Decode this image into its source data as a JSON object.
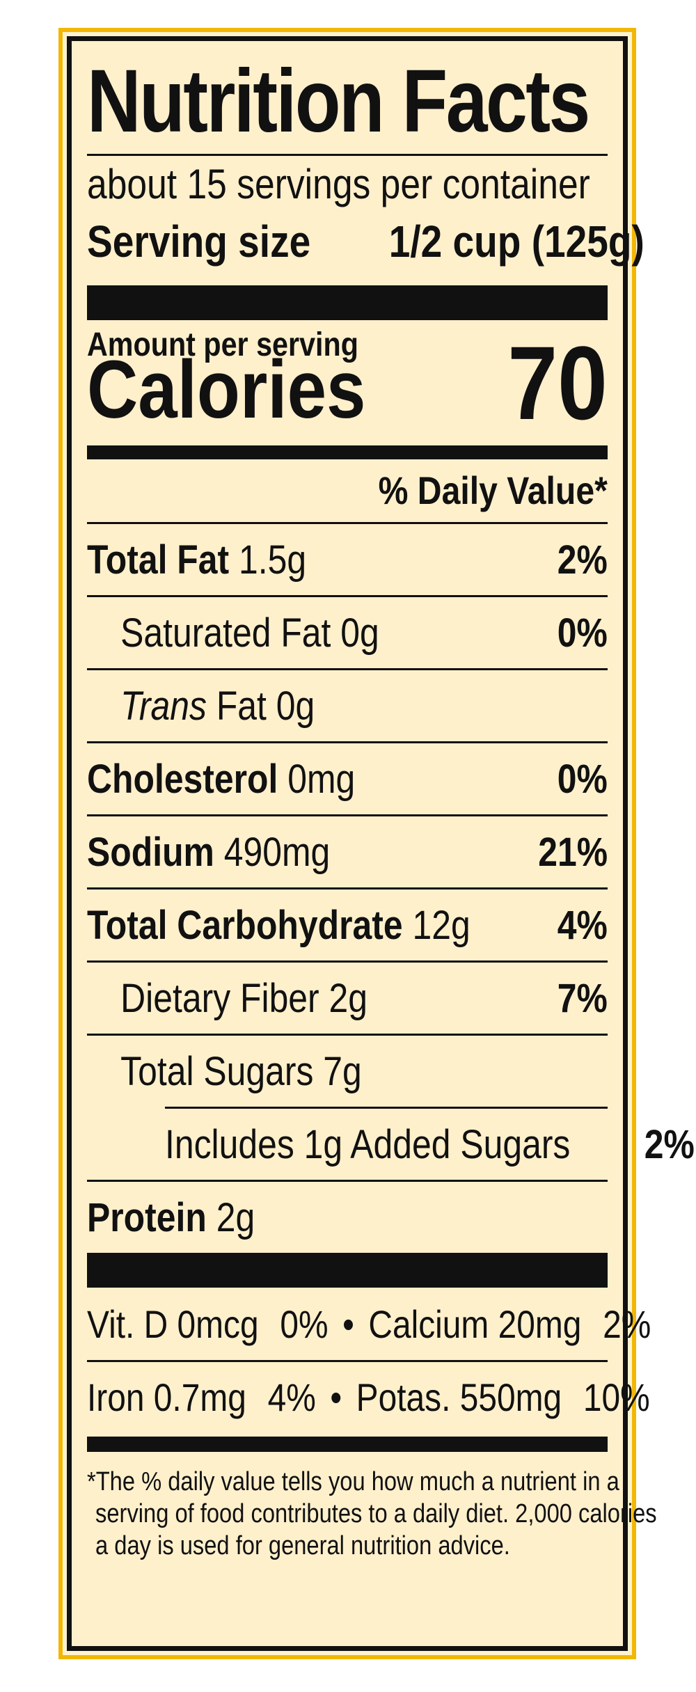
{
  "label": {
    "title": "Nutrition Facts",
    "servings_per_container": "about 15 servings per container",
    "serving_size_label": "Serving size",
    "serving_size_value": "1/2 cup (125g)",
    "amount_per_serving": "Amount per serving",
    "calories_label": "Calories",
    "calories_value": "70",
    "daily_value_header": "% Daily Value*",
    "nutrients": [
      {
        "name": "Total Fat",
        "amount": "1.5g",
        "dv": "2%"
      },
      {
        "name": "Saturated Fat",
        "amount": "0g",
        "dv": "0%"
      },
      {
        "name": "Trans",
        "amount": "Fat 0g",
        "dv": ""
      },
      {
        "name": "Cholesterol",
        "amount": "0mg",
        "dv": "0%"
      },
      {
        "name": "Sodium",
        "amount": "490mg",
        "dv": "21%"
      },
      {
        "name": "Total Carbohydrate",
        "amount": "12g",
        "dv": "4%"
      },
      {
        "name": "Dietary Fiber",
        "amount": "2g",
        "dv": "7%"
      },
      {
        "name": "Total Sugars",
        "amount": "7g",
        "dv": ""
      },
      {
        "name": "Includes 1g Added Sugars",
        "amount": "",
        "dv": "2%"
      },
      {
        "name": "Protein",
        "amount": "2g",
        "dv": ""
      }
    ],
    "vitamins": [
      {
        "left_name": "Vit. D 0mcg",
        "left_dv": "0%",
        "right_name": "Calcium 20mg",
        "right_dv": "2%"
      },
      {
        "left_name": "Iron 0.7mg",
        "left_dv": "4%",
        "right_name": "Potas. 550mg",
        "right_dv": "10%"
      }
    ],
    "separator": "•",
    "footnote": [
      "*The % daily value tells you how much a nutrient in a",
      "serving of food contributes to a daily diet. 2,000 calories",
      "a day is used for general nutrition advice."
    ],
    "colors": {
      "border": "#f2b705",
      "background": "#fff0cc",
      "ink": "#111111"
    }
  }
}
